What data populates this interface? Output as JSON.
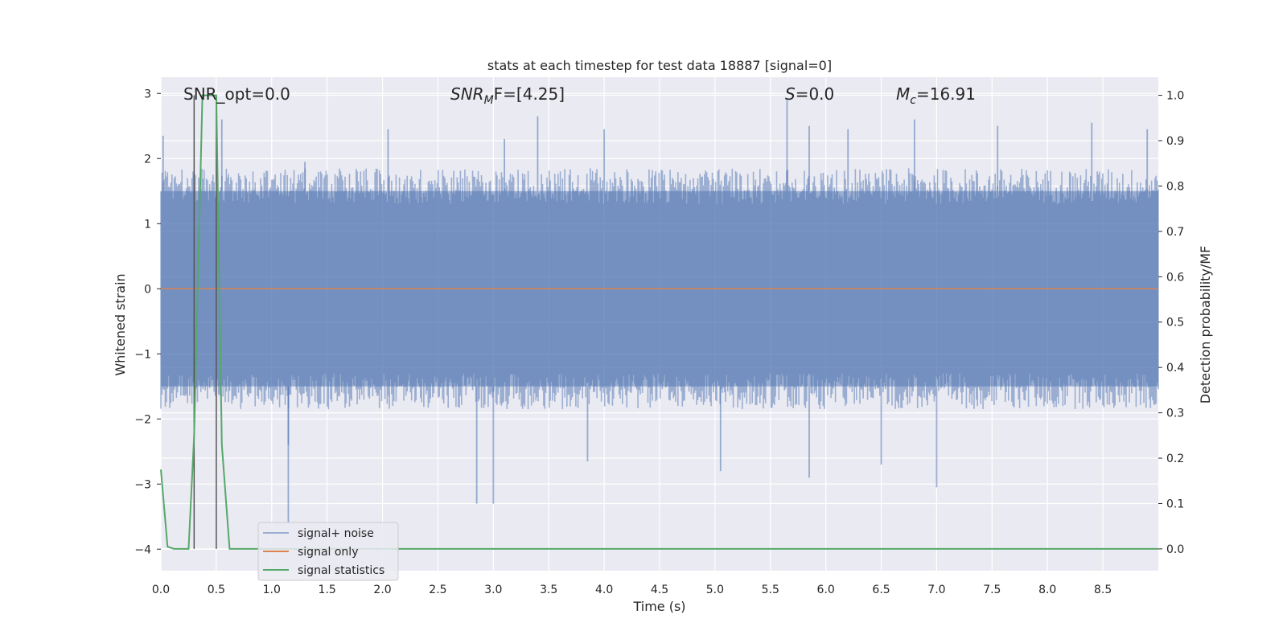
{
  "chart_data": {
    "type": "line",
    "title": "stats at each timestep for test data 18887 [signal=0]",
    "xlabel": "Time (s)",
    "ylabel_left": "Whitened strain",
    "ylabel_right": "Detection probability/MF",
    "xlim": [
      0.0,
      9.0
    ],
    "ylim_left": [
      -4.33,
      3.25
    ],
    "ylim_right": [
      -0.048,
      1.04
    ],
    "xticks": [
      "0.0",
      "0.5",
      "1.0",
      "1.5",
      "2.0",
      "2.5",
      "3.0",
      "3.5",
      "4.0",
      "4.5",
      "5.0",
      "5.5",
      "6.0",
      "6.5",
      "7.0",
      "7.5",
      "8.0",
      "8.5"
    ],
    "yticks_left": [
      "3",
      "2",
      "1",
      "0",
      "−1",
      "−2",
      "−3",
      "−4"
    ],
    "yticks_right": [
      "1.0",
      "0.9",
      "0.8",
      "0.7",
      "0.6",
      "0.5",
      "0.4",
      "0.3",
      "0.2",
      "0.1",
      "0.0"
    ],
    "grid": true,
    "legend_position": "lower-left",
    "colors": {
      "background": "#eaeaf2",
      "grid": "#ffffff",
      "signal_noise": "#4c72b0",
      "signal_only": "#dd8452",
      "signal_statistics": "#55a868",
      "vlines": "#555555"
    },
    "annotations": {
      "snr_opt": "SNR_opt=0.0",
      "snr_mf_name": "SNR",
      "snr_mf_sub": "M",
      "snr_mf_rest": "F=[4.25]",
      "s_name": "S",
      "s_value": "=0.0",
      "mc_name": "M",
      "mc_sub": "c",
      "mc_value": "=16.91"
    },
    "vertical_lines_x": [
      0.3,
      0.5
    ],
    "series": [
      {
        "name": "signal+ noise",
        "axis": "left",
        "description": "whitened strain noise, roughly ±1.5 band with spikes up to 2.95 and down to -3.6",
        "x_range": [
          0.0,
          9.0
        ],
        "band": [
          -1.5,
          1.5
        ],
        "spikes_up": [
          [
            0.02,
            2.35
          ],
          [
            0.55,
            2.6
          ],
          [
            1.3,
            1.95
          ],
          [
            2.05,
            2.45
          ],
          [
            3.1,
            2.3
          ],
          [
            3.4,
            2.65
          ],
          [
            4.0,
            2.45
          ],
          [
            5.65,
            2.9
          ],
          [
            5.85,
            2.5
          ],
          [
            6.2,
            2.45
          ],
          [
            6.8,
            2.6
          ],
          [
            7.55,
            2.5
          ],
          [
            8.4,
            2.55
          ],
          [
            8.9,
            2.45
          ]
        ],
        "spikes_down": [
          [
            1.15,
            -3.6
          ],
          [
            1.15,
            -2.4
          ],
          [
            2.85,
            -3.3
          ],
          [
            3.0,
            -3.3
          ],
          [
            3.85,
            -2.65
          ],
          [
            5.05,
            -2.8
          ],
          [
            5.85,
            -2.9
          ],
          [
            6.5,
            -2.7
          ],
          [
            7.0,
            -3.05
          ]
        ]
      },
      {
        "name": "signal only",
        "axis": "left",
        "x": [
          0.0,
          9.0
        ],
        "y": [
          0.0,
          0.0
        ]
      },
      {
        "name": "signal statistics",
        "axis": "right",
        "x": [
          0.0,
          0.06,
          0.12,
          0.25,
          0.3,
          0.375,
          0.5,
          0.55,
          0.62,
          9.0
        ],
        "y": [
          0.175,
          0.005,
          0.0,
          0.0,
          0.25,
          1.0,
          1.0,
          0.23,
          0.0,
          0.0
        ]
      }
    ]
  }
}
